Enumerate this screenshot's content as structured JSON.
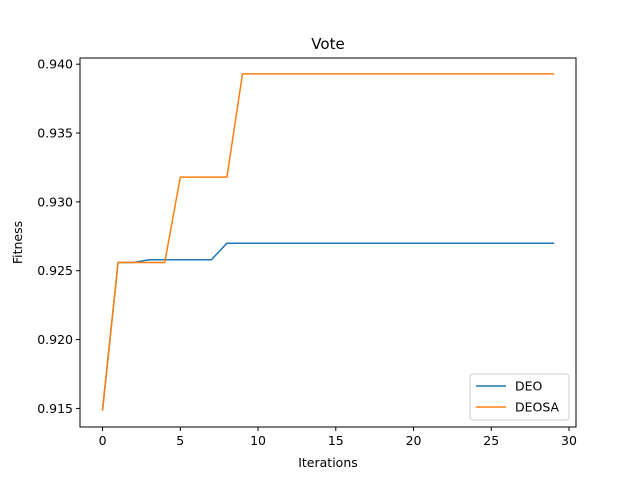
{
  "chart_data": {
    "type": "line",
    "title": "Vote",
    "xlabel": "Iterations",
    "ylabel": "Fitness",
    "xlim": [
      -1.45,
      30.45
    ],
    "ylim": [
      0.91365,
      0.94045
    ],
    "xticks": [
      0,
      5,
      10,
      15,
      20,
      25,
      30
    ],
    "xtick_labels": [
      "0",
      "5",
      "10",
      "15",
      "20",
      "25",
      "30"
    ],
    "yticks": [
      0.915,
      0.92,
      0.925,
      0.93,
      0.935,
      0.94
    ],
    "ytick_labels": [
      "0.915",
      "0.920",
      "0.925",
      "0.930",
      "0.935",
      "0.940"
    ],
    "grid": false,
    "legend_position": "bottom-right",
    "x": [
      0,
      1,
      2,
      3,
      4,
      5,
      6,
      7,
      8,
      9,
      10,
      11,
      12,
      13,
      14,
      15,
      16,
      17,
      18,
      19,
      20,
      21,
      22,
      23,
      24,
      25,
      26,
      27,
      28,
      29
    ],
    "series": [
      {
        "name": "DEO",
        "color": "#1f77b4",
        "values": [
          0.9149,
          0.9256,
          0.9256,
          0.9258,
          0.9258,
          0.9258,
          0.9258,
          0.9258,
          0.927,
          0.927,
          0.927,
          0.927,
          0.927,
          0.927,
          0.927,
          0.927,
          0.927,
          0.927,
          0.927,
          0.927,
          0.927,
          0.927,
          0.927,
          0.927,
          0.927,
          0.927,
          0.927,
          0.927,
          0.927,
          0.927
        ]
      },
      {
        "name": "DEOSA",
        "color": "#ff7f0e",
        "values": [
          0.9149,
          0.9256,
          0.9256,
          0.9256,
          0.9256,
          0.9318,
          0.9318,
          0.9318,
          0.9318,
          0.9393,
          0.9393,
          0.9393,
          0.9393,
          0.9393,
          0.9393,
          0.9393,
          0.9393,
          0.9393,
          0.9393,
          0.9393,
          0.9393,
          0.9393,
          0.9393,
          0.9393,
          0.9393,
          0.9393,
          0.9393,
          0.9393,
          0.9393,
          0.9393
        ]
      }
    ]
  }
}
